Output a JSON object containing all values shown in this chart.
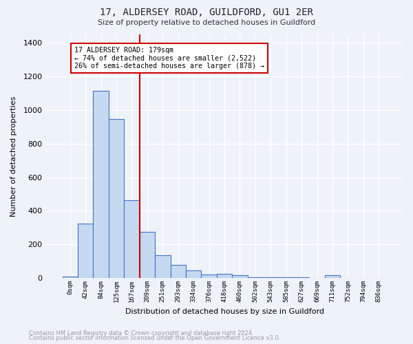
{
  "title": "17, ALDERSEY ROAD, GUILDFORD, GU1 2ER",
  "subtitle": "Size of property relative to detached houses in Guildford",
  "xlabel": "Distribution of detached houses by size in Guildford",
  "ylabel": "Number of detached properties",
  "footer_line1": "Contains HM Land Registry data © Crown copyright and database right 2024.",
  "footer_line2": "Contains public sector information licensed under the Open Government Licence v3.0.",
  "bar_labels": [
    "0sqm",
    "42sqm",
    "84sqm",
    "125sqm",
    "167sqm",
    "209sqm",
    "251sqm",
    "293sqm",
    "334sqm",
    "376sqm",
    "418sqm",
    "460sqm",
    "502sqm",
    "543sqm",
    "585sqm",
    "627sqm",
    "669sqm",
    "711sqm",
    "752sqm",
    "794sqm",
    "836sqm"
  ],
  "bar_values": [
    10,
    325,
    1115,
    945,
    465,
    275,
    135,
    78,
    45,
    22,
    25,
    18,
    5,
    5,
    5,
    5,
    0,
    18,
    0,
    0,
    0
  ],
  "bar_color": "#c5d9f1",
  "bar_edge_color": "#4472c4",
  "property_line_x": 4.5,
  "annotation_line1": "17 ALDERSEY ROAD: 179sqm",
  "annotation_line2": "← 74% of detached houses are smaller (2,522)",
  "annotation_line3": "26% of semi-detached houses are larger (878) →",
  "annotation_box_color": "#ffffff",
  "annotation_border_color": "#cc0000",
  "vline_color": "#cc0000",
  "ylim": [
    0,
    1450
  ],
  "yticks": [
    0,
    200,
    400,
    600,
    800,
    1000,
    1200,
    1400
  ],
  "background_color": "#eef2f9",
  "grid_color": "#ffffff"
}
